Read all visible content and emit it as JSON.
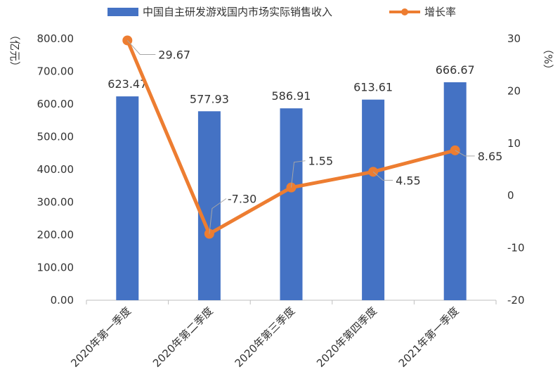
{
  "chart_data": {
    "type": "bar+line",
    "categories": [
      "2020年第一季度",
      "2020年第二季度",
      "2020年第三季度",
      "2020年第四季度",
      "2021年第一季度"
    ],
    "series": [
      {
        "name": "中国自主研发游戏国内市场实际销售收入",
        "type": "bar",
        "axis": "left",
        "values": [
          623.47,
          577.93,
          586.91,
          613.61,
          666.67
        ],
        "labels": [
          "623.47",
          "577.93",
          "586.91",
          "613.61",
          "666.67"
        ]
      },
      {
        "name": "增长率",
        "type": "line",
        "axis": "right",
        "values": [
          29.67,
          -7.3,
          1.55,
          4.55,
          8.65
        ],
        "labels": [
          "29.67",
          "-7.30",
          "1.55",
          "4.55",
          "8.65"
        ]
      }
    ],
    "y_left": {
      "label": "（亿元）",
      "ylim": [
        0,
        800
      ],
      "ticks": [
        "0.00",
        "100.00",
        "200.00",
        "300.00",
        "400.00",
        "500.00",
        "600.00",
        "700.00",
        "800.00"
      ]
    },
    "y_right": {
      "label": "（%）",
      "ylim": [
        -20,
        30
      ],
      "ticks": [
        "-20",
        "-10",
        "0",
        "10",
        "20",
        "30"
      ]
    },
    "legend_position": "top",
    "grid": false,
    "colors": {
      "bar": "#4472C4",
      "line": "#ED7D31",
      "axis": "#bfbfbf",
      "text": "#333333",
      "leader": "#a6a6a6"
    }
  }
}
